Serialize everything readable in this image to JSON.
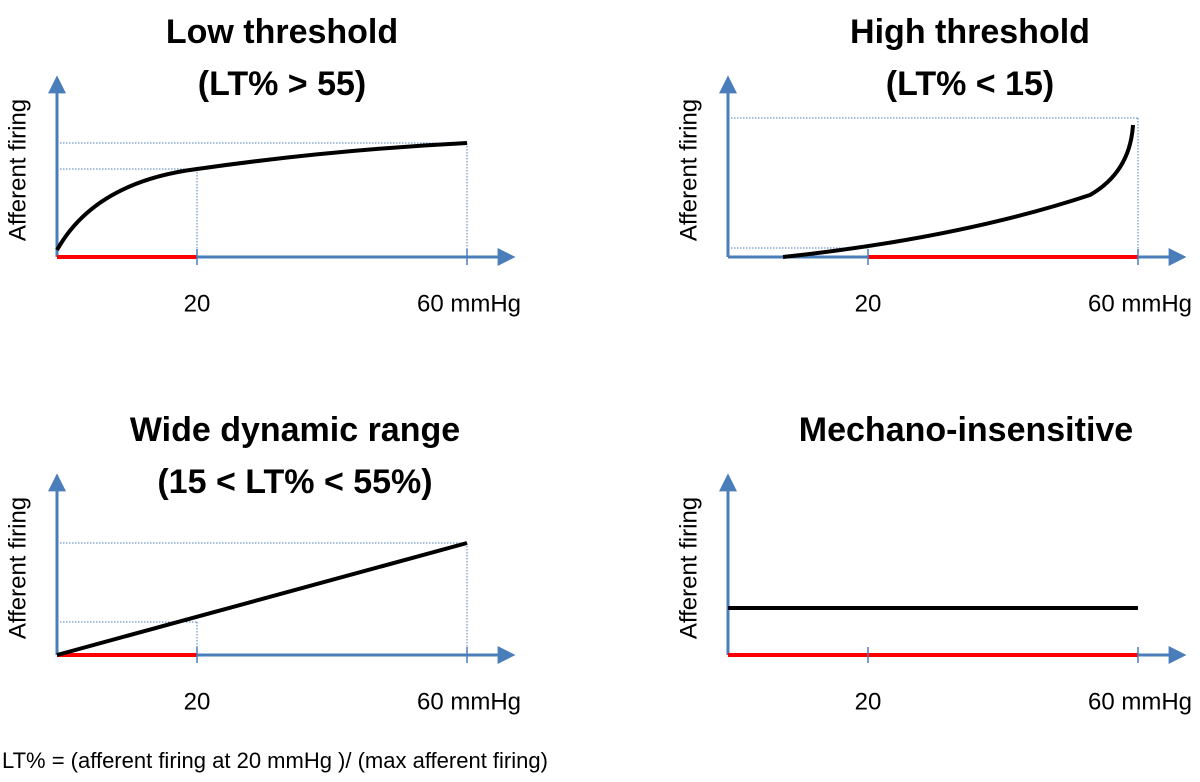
{
  "panels": [
    {
      "title": [
        "Low threshold",
        "(LT% > 55)"
      ],
      "y_label": "Afferent firing",
      "x_ticks": [
        "20",
        "60 mmHg"
      ]
    },
    {
      "title": [
        "High threshold",
        "(LT% < 15)"
      ],
      "y_label": "Afferent firing",
      "x_ticks": [
        "20",
        "60 mmHg"
      ]
    },
    {
      "title": [
        "Wide dynamic range",
        "(15 < LT% < 55%)"
      ],
      "y_label": "Afferent firing",
      "x_ticks": [
        "20",
        "60 mmHg"
      ]
    },
    {
      "title": [
        "Mechano-insensitive"
      ],
      "y_label": "Afferent firing",
      "x_ticks": [
        "20",
        "60 mmHg"
      ]
    }
  ],
  "footnote": "LT% = (afferent firing at 20 mmHg )/ (max afferent firing)"
}
